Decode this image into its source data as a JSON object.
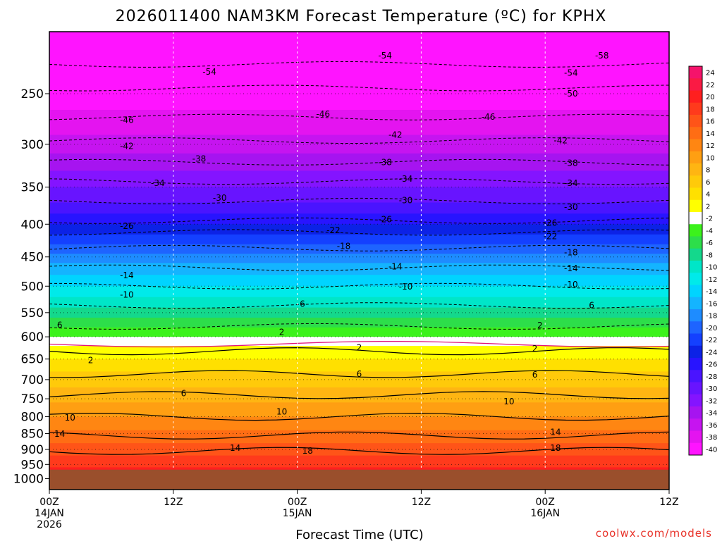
{
  "chart_data": {
    "type": "heatmap",
    "title": "2026011400 NAM3KM Forecast Temperature (ºC) for KPHX",
    "xlabel": "Forecast Time (UTC)",
    "ylabel": "",
    "credit": "coolwx.com/models",
    "y_axis": {
      "scale": "log",
      "inverted": true,
      "range": [
        1040,
        200
      ],
      "ticks": [
        "250",
        "300",
        "350",
        "400",
        "450",
        "500",
        "550",
        "600",
        "650",
        "700",
        "750",
        "800",
        "850",
        "900",
        "950",
        "1000"
      ]
    },
    "x_axis": {
      "range_hours": [
        0,
        60
      ],
      "ticks": [
        {
          "hour": 0,
          "lines": [
            "00Z",
            "14JAN",
            "2026"
          ]
        },
        {
          "hour": 12,
          "lines": [
            "12Z"
          ]
        },
        {
          "hour": 24,
          "lines": [
            "00Z",
            "15JAN"
          ]
        },
        {
          "hour": 36,
          "lines": [
            "12Z"
          ]
        },
        {
          "hour": 48,
          "lines": [
            "00Z",
            "16JAN"
          ]
        },
        {
          "hour": 60,
          "lines": [
            "12Z"
          ]
        }
      ]
    },
    "grid": true,
    "surface_pressure_hpa": 968,
    "surface_color": "#9a4f2c",
    "colorbar": {
      "levels": [
        24,
        22,
        20,
        18,
        16,
        14,
        12,
        10,
        8,
        6,
        4,
        2,
        -2,
        -4,
        -6,
        -8,
        -10,
        -12,
        -14,
        -16,
        -18,
        -20,
        -22,
        -24,
        -26,
        -28,
        -30,
        -32,
        -34,
        -36,
        -38,
        -40
      ],
      "tick_labels": [
        "24",
        "22",
        "20",
        "18",
        "16",
        "14",
        "12",
        "10",
        "8",
        "6",
        "4",
        "2",
        "-2",
        "-4",
        "-6",
        "-8",
        "-10",
        "-12",
        "-14",
        "-16",
        "-18",
        "-20",
        "-22",
        "-24",
        "-26",
        "-28",
        "-30",
        "-32",
        "-34",
        "-36",
        "-38",
        "-40"
      ],
      "colors": [
        "#f5136b",
        "#fa1a44",
        "#ff1f1f",
        "#ff3a1c",
        "#ff5418",
        "#ff6d14",
        "#ff8612",
        "#ff9f12",
        "#ffb512",
        "#ffca0a",
        "#ffe000",
        "#ffff00",
        "#ffffff",
        "#3cf21c",
        "#2dde4a",
        "#14d88c",
        "#00e6c8",
        "#00eaea",
        "#00d4ff",
        "#14b4ff",
        "#1e8cff",
        "#1e64ff",
        "#1440ff",
        "#0c22e6",
        "#2814ff",
        "#4a14ff",
        "#6814ff",
        "#8414ff",
        "#a614f0",
        "#c614f0",
        "#e414f0",
        "#ff14ff"
      ]
    },
    "contour_labels": [
      {
        "value": "-58",
        "hour": 53.5,
        "hpa": 218
      },
      {
        "value": "-54",
        "hour": 32.5,
        "hpa": 218
      },
      {
        "value": "-54",
        "hour": 15.5,
        "hpa": 231
      },
      {
        "value": "-54",
        "hour": 50.5,
        "hpa": 232
      },
      {
        "value": "-50",
        "hour": 50.5,
        "hpa": 250
      },
      {
        "value": "-46",
        "hour": 7.5,
        "hpa": 275
      },
      {
        "value": "-46",
        "hour": 26.5,
        "hpa": 269
      },
      {
        "value": "-46",
        "hour": 42.5,
        "hpa": 272
      },
      {
        "value": "-42",
        "hour": 7.5,
        "hpa": 302
      },
      {
        "value": "-42",
        "hour": 33.5,
        "hpa": 290
      },
      {
        "value": "-42",
        "hour": 49.5,
        "hpa": 296
      },
      {
        "value": "-38",
        "hour": 14.5,
        "hpa": 316
      },
      {
        "value": "-38",
        "hour": 32.5,
        "hpa": 320
      },
      {
        "value": "-38",
        "hour": 50.5,
        "hpa": 321
      },
      {
        "value": "-34",
        "hour": 10.5,
        "hpa": 345
      },
      {
        "value": "-34",
        "hour": 34.5,
        "hpa": 340
      },
      {
        "value": "-34",
        "hour": 50.5,
        "hpa": 345
      },
      {
        "value": "-30",
        "hour": 16.5,
        "hpa": 364
      },
      {
        "value": "-30",
        "hour": 34.5,
        "hpa": 367
      },
      {
        "value": "-30",
        "hour": 50.5,
        "hpa": 376
      },
      {
        "value": "-26",
        "hour": 7.5,
        "hpa": 403
      },
      {
        "value": "-26",
        "hour": 32.5,
        "hpa": 393
      },
      {
        "value": "-26",
        "hour": 48.5,
        "hpa": 398
      },
      {
        "value": "-22",
        "hour": 27.5,
        "hpa": 409
      },
      {
        "value": "-22",
        "hour": 48.5,
        "hpa": 418
      },
      {
        "value": "-18",
        "hour": 28.5,
        "hpa": 433
      },
      {
        "value": "-18",
        "hour": 50.5,
        "hpa": 443
      },
      {
        "value": "-14",
        "hour": 7.5,
        "hpa": 481
      },
      {
        "value": "-14",
        "hour": 33.5,
        "hpa": 466
      },
      {
        "value": "-14",
        "hour": 50.5,
        "hpa": 469
      },
      {
        "value": "-10",
        "hour": 7.5,
        "hpa": 516
      },
      {
        "value": "-10",
        "hour": 34.5,
        "hpa": 501
      },
      {
        "value": "-10",
        "hour": 50.5,
        "hpa": 497
      },
      {
        "value": "6",
        "hour": 1.0,
        "hpa": 575
      },
      {
        "value": "6",
        "hour": 24.5,
        "hpa": 533
      },
      {
        "value": "6",
        "hour": 52.5,
        "hpa": 536
      },
      {
        "value": "2",
        "hour": 22.5,
        "hpa": 590
      },
      {
        "value": "2",
        "hour": 47.5,
        "hpa": 576
      },
      {
        "value": "2",
        "hour": 4.0,
        "hpa": 653
      },
      {
        "value": "2",
        "hour": 30.0,
        "hpa": 624
      },
      {
        "value": "2",
        "hour": 47.0,
        "hpa": 626
      },
      {
        "value": "6",
        "hour": 13.0,
        "hpa": 736
      },
      {
        "value": "6",
        "hour": 30.0,
        "hpa": 686
      },
      {
        "value": "6",
        "hour": 47.0,
        "hpa": 688
      },
      {
        "value": "10",
        "hour": 2.0,
        "hpa": 803
      },
      {
        "value": "10",
        "hour": 22.5,
        "hpa": 786
      },
      {
        "value": "10",
        "hour": 44.5,
        "hpa": 757
      },
      {
        "value": "14",
        "hour": 1.0,
        "hpa": 851
      },
      {
        "value": "14",
        "hour": 18.0,
        "hpa": 896
      },
      {
        "value": "14",
        "hour": 49.0,
        "hpa": 846
      },
      {
        "value": "18",
        "hour": 25.0,
        "hpa": 905
      },
      {
        "value": "18",
        "hour": 49.0,
        "hpa": 896
      }
    ]
  }
}
